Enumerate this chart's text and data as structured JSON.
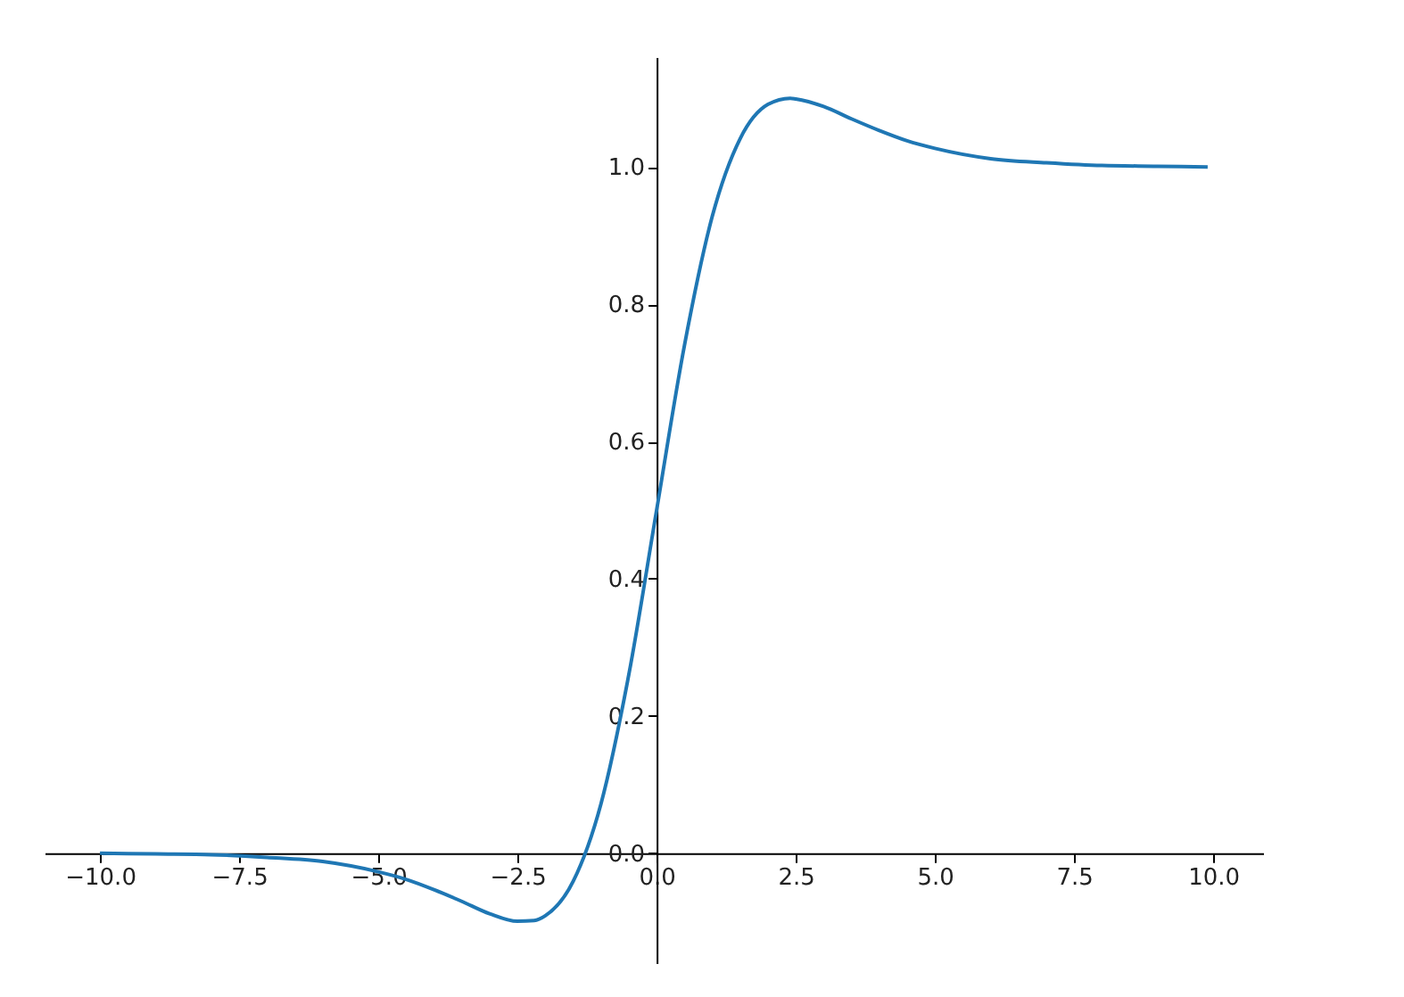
{
  "chart_data": {
    "type": "line",
    "x": [
      -10,
      -9,
      -8,
      -7,
      -6,
      -5,
      -4.5,
      -4,
      -3.5,
      -3,
      -2.5,
      -2.2,
      -2,
      -1.5,
      -1,
      -0.5,
      0,
      0.5,
      1,
      1.5,
      2,
      2.4,
      2.5,
      3,
      3.5,
      4,
      4.5,
      5,
      6,
      7,
      8,
      9,
      9.9
    ],
    "series": [
      {
        "color": "#1f77b4",
        "values": [
          0,
          -0.001,
          -0.002,
          -0.006,
          -0.012,
          -0.027,
          -0.038,
          -0.053,
          -0.07,
          -0.088,
          -0.099,
          -0.098,
          -0.091,
          -0.041,
          0.072,
          0.26,
          0.5,
          0.74,
          0.928,
          1.041,
          1.091,
          1.1,
          1.099,
          1.088,
          1.07,
          1.053,
          1.038,
          1.027,
          1.012,
          1.006,
          1.002,
          1.001,
          1.0
        ]
      }
    ],
    "xlim": [
      -10.995,
      10.895
    ],
    "ylim": [
      -0.16,
      1.16
    ],
    "xticks": [
      {
        "value": -10,
        "label": "−10.0"
      },
      -7.5,
      {
        "value": -5,
        "label": "−5.0"
      },
      -2.5,
      {
        "value": 0,
        "label": "0.0"
      },
      2.5,
      {
        "value": 5,
        "label": "5.0"
      },
      7.5,
      {
        "value": 10,
        "label": "10.0"
      }
    ],
    "yticks": [
      {
        "value": 0,
        "label": "0.0"
      },
      0.2,
      0.4,
      0.6,
      0.8,
      {
        "value": 1,
        "label": "1.0"
      }
    ],
    "grid": false,
    "marker": "none",
    "line_style": "solid"
  }
}
